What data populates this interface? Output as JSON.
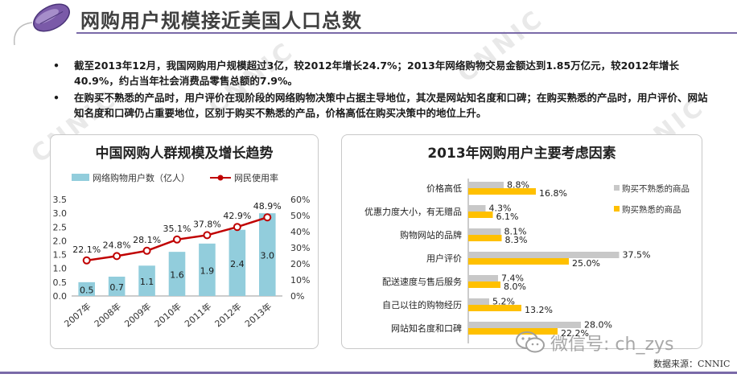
{
  "page": {
    "title": "网购用户规模接近美国人口总数",
    "bullets": [
      "截至2013年12月，我国网购用户规模超过3亿，较2012年增长24.7%；2013年网络购物交易金额达到1.85万亿元，较2012年增长40.9%，约占当年社会消费品零售总额的7.9%。",
      "在购买不熟悉的产品时，用户评价在现阶段的网络购物决策中占据主导地位，其次是网站知名度和口碑；在购买熟悉的产品时，用户评价、网站知名度和口碑仍占重要地位，区别于购买不熟悉的产品，价格高低在购买决策中的地位上升。"
    ],
    "bullet_marker": "•",
    "source": "数据来源：CNNIC",
    "watermark": "微信号: ch_zys",
    "bg_watermark": "CNNIC"
  },
  "colors": {
    "accent": "#7a6aa8",
    "bar_users": "#92cddc",
    "line_rate": "#c00000",
    "bar_unfamiliar": "#c8c8c8",
    "bar_familiar": "#ffc000"
  },
  "chart_data": [
    {
      "type": "bar",
      "title": "中国网购人群规模及增长趋势",
      "categories": [
        "2007年",
        "2008年",
        "2009年",
        "2010年",
        "2011年",
        "2012年",
        "2013年"
      ],
      "series": [
        {
          "name": "网络购物用户数（亿人）",
          "type": "bar",
          "axis": "left",
          "values": [
            0.5,
            0.7,
            1.1,
            1.6,
            1.9,
            2.4,
            3.0
          ],
          "labels": [
            "0.5",
            "0.7",
            "1.1",
            "1.6",
            "1.9",
            "2.4",
            "3.0"
          ]
        },
        {
          "name": "网民使用率",
          "type": "line",
          "axis": "right",
          "values": [
            22.1,
            24.8,
            28.1,
            35.1,
            37.8,
            42.9,
            48.9
          ],
          "labels": [
            "22.1%",
            "24.8%",
            "28.1%",
            "35.1%",
            "37.8%",
            "42.9%",
            "48.9%"
          ]
        }
      ],
      "y_left": {
        "min": 0,
        "max": 3.5,
        "ticks": [
          "0.0",
          "0.5",
          "1.0",
          "1.5",
          "2.0",
          "2.5",
          "3.0",
          "3.5"
        ]
      },
      "y_right": {
        "min": 0,
        "max": 60,
        "ticks": [
          "0%",
          "10%",
          "20%",
          "30%",
          "40%",
          "50%",
          "60%"
        ]
      },
      "legend": "top",
      "grid": false
    },
    {
      "type": "bar",
      "orientation": "horizontal",
      "title": "2013年网购用户主要考虑因素",
      "categories": [
        "价格高低",
        "优惠力度大小，有无赠品",
        "购物网站的品牌",
        "用户评价",
        "配送速度与售后服务",
        "自己以往的购物经历",
        "网站知名度和口碑"
      ],
      "series": [
        {
          "name": "购买不熟悉的商品",
          "values": [
            8.8,
            4.3,
            8.1,
            37.5,
            7.4,
            5.2,
            28.0
          ],
          "labels": [
            "8.8%",
            "4.3%",
            "8.1%",
            "37.5%",
            "7.4%",
            "5.2%",
            "28.0%"
          ]
        },
        {
          "name": "购买熟悉的商品",
          "values": [
            16.8,
            6.1,
            8.3,
            25.0,
            8.0,
            13.2,
            22.2
          ],
          "labels": [
            "16.8%",
            "6.1%",
            "8.3%",
            "25.0%",
            "8.0%",
            "13.2%",
            "22.2%"
          ]
        }
      ],
      "xlim": [
        0,
        40
      ],
      "legend": "right",
      "grid": false
    }
  ]
}
